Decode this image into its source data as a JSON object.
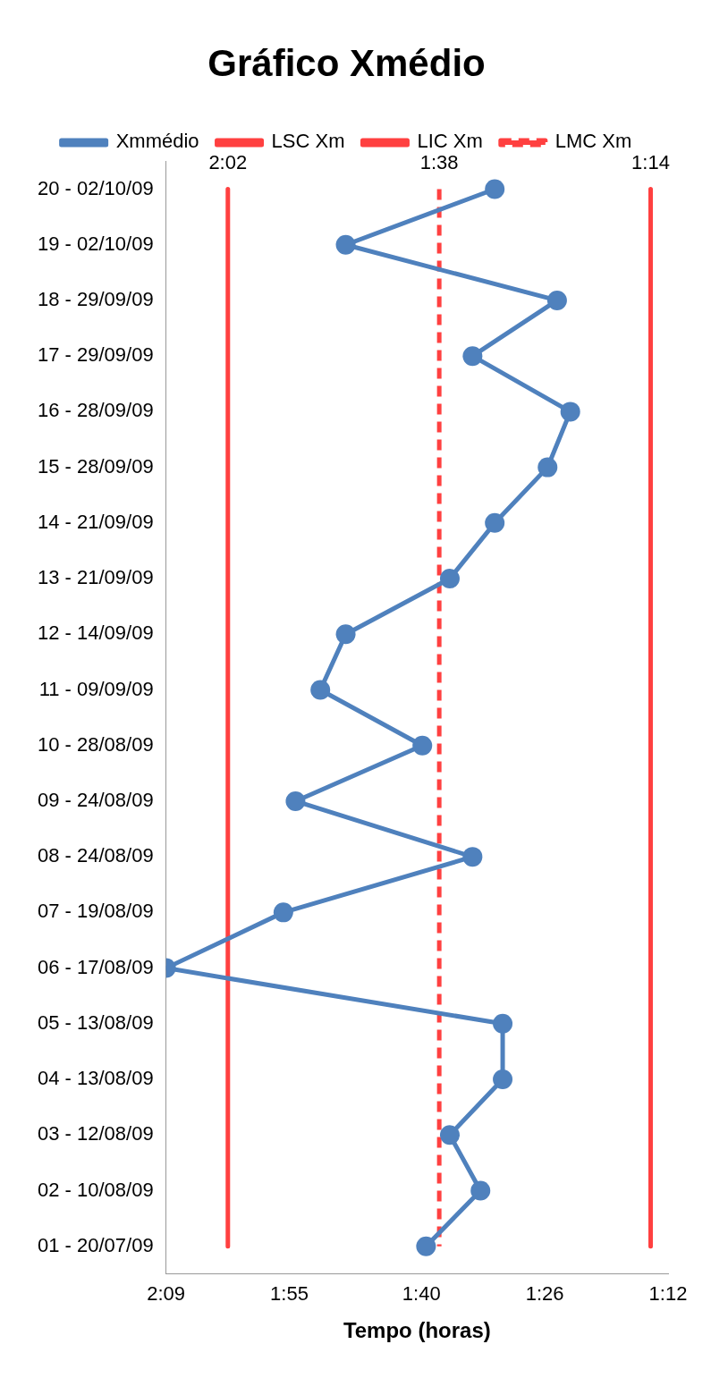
{
  "chart_data": {
    "type": "line",
    "orientation": "horizontal",
    "title": "Gráfico Xmédio",
    "xlabel": "Tempo (horas)",
    "categories": [
      "20 - 02/10/09",
      "19 - 02/10/09",
      "18 - 29/09/09",
      "17 - 29/09/09",
      "16 - 28/09/09",
      "15 - 28/09/09",
      "14 - 21/09/09",
      "13 - 21/09/09",
      "12 - 14/09/09",
      "11 - 09/09/09",
      "10 - 28/08/09",
      "09 - 24/08/09",
      "08 - 24/08/09",
      "07 - 19/08/09",
      "06 - 17/08/09",
      "05 - 13/08/09",
      "04 - 13/08/09",
      "03 - 12/08/09",
      "02 - 10/08/09",
      "01 - 20/07/09"
    ],
    "series": [
      {
        "name": "Xmmédio",
        "color": "#4f81bd",
        "marker": "circle",
        "values": [
          1.528,
          1.81,
          1.41,
          1.57,
          1.385,
          1.428,
          1.528,
          1.613,
          1.81,
          1.858,
          1.665,
          1.905,
          1.57,
          1.928,
          2.15,
          1.513,
          1.513,
          1.613,
          1.555,
          1.658
        ]
      },
      {
        "name": "LSC Xm",
        "color": "#ff4040",
        "marker": "none",
        "line_style": "solid",
        "values": [
          2.033,
          2.033,
          2.033,
          2.033,
          2.033,
          2.033,
          2.033,
          2.033,
          2.033,
          2.033,
          2.033,
          2.033,
          2.033,
          2.033,
          2.033,
          2.033,
          2.033,
          2.033,
          2.033,
          2.033
        ]
      },
      {
        "name": "LIC Xm",
        "color": "#ff4040",
        "marker": "none",
        "line_style": "solid",
        "values": [
          1.233,
          1.233,
          1.233,
          1.233,
          1.233,
          1.233,
          1.233,
          1.233,
          1.233,
          1.233,
          1.233,
          1.233,
          1.233,
          1.233,
          1.233,
          1.233,
          1.233,
          1.233,
          1.233,
          1.233
        ]
      },
      {
        "name": "LMC Xm",
        "color": "#ff4040",
        "marker": "none",
        "line_style": "dashed",
        "values": [
          1.633,
          1.633,
          1.633,
          1.633,
          1.633,
          1.633,
          1.633,
          1.633,
          1.633,
          1.633,
          1.633,
          1.633,
          1.633,
          1.633,
          1.633,
          1.633,
          1.633,
          1.633,
          1.633,
          1.633
        ]
      }
    ],
    "annotations": [
      {
        "text": "2:02",
        "x": 2.033,
        "y": "20 - 02/10/09"
      },
      {
        "text": "1:38",
        "x": 1.633,
        "y": "20 - 02/10/09"
      },
      {
        "text": "1:14",
        "x": 1.233,
        "y": "20 - 02/10/09"
      }
    ],
    "xlim": [
      2.15,
      1.2
    ],
    "xticks": [
      {
        "value": 2.15,
        "label": "2:09"
      },
      {
        "value": 1.9167,
        "label": "1:55"
      },
      {
        "value": 1.6667,
        "label": "1:40"
      },
      {
        "value": 1.4333,
        "label": "1:26"
      },
      {
        "value": 1.2,
        "label": "1:12"
      }
    ],
    "grid": false,
    "legend": "top",
    "line_style": "solid"
  }
}
